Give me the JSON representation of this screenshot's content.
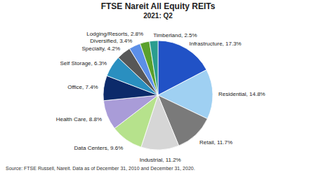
{
  "chart_data": {
    "type": "pie",
    "title": "FTSE Nareit All Equity REITs",
    "subtitle": "2021: Q2",
    "categories": [
      "Infrastructure",
      "Residential",
      "Retail",
      "Industrial",
      "Data Centers",
      "Health Care",
      "Office",
      "Self Storage",
      "Specialty",
      "Diversified",
      "Lodging/Resorts",
      "Timberland"
    ],
    "values": [
      17.3,
      14.8,
      11.7,
      11.2,
      9.6,
      8.8,
      7.4,
      6.3,
      4.2,
      3.4,
      2.8,
      2.5
    ],
    "value_labels": [
      "Infrastructure, 17.3%",
      "Residential, 14.8%",
      "Retail, 11.7%",
      "Industrial, 11.2%",
      "Data Centers, 9.6%",
      "Health Care, 8.8%",
      "Office, 7.4%",
      "Self Storage, 6.3%",
      "Specialty, 4.2%",
      "Diversified, 3.4%",
      "Lodging/Resorts, 2.8%",
      "Timberland, 2.5%"
    ],
    "colors": [
      "#2152c6",
      "#9fd0f2",
      "#7a7a7a",
      "#d6d6d6",
      "#b6e28c",
      "#a99cd8",
      "#0c2a6a",
      "#2a8fc0",
      "#575757",
      "#5c8fe8",
      "#5aa02c",
      "#2a9d8f"
    ],
    "data_labels": true,
    "annotations": [
      "Source: FTSE Russell, Nareit. Data as of December 31, 2010 and December 31, 2020."
    ]
  }
}
